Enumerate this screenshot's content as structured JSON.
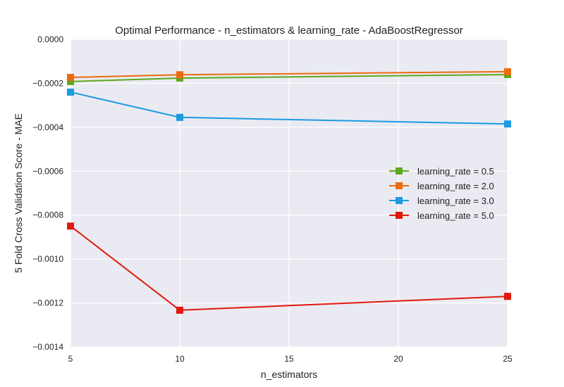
{
  "chart_data": {
    "type": "line",
    "title": "Optimal Performance - n_estimators & learning_rate - AdaBoostRegressor",
    "xlabel": "n_estimators",
    "ylabel": "5 Fold Cross Validation Score - MAE",
    "xlim": [
      5,
      25
    ],
    "ylim": [
      -0.0014,
      0.0
    ],
    "x_ticks": [
      5,
      10,
      15,
      20,
      25
    ],
    "y_ticks": [
      0.0,
      -0.0002,
      -0.0004,
      -0.0006,
      -0.0008,
      -0.001,
      -0.0012,
      -0.0014
    ],
    "x_tick_labels": [
      "5",
      "10",
      "15",
      "20",
      "25"
    ],
    "y_tick_labels": [
      "0.0000",
      "−0.0002",
      "−0.0004",
      "−0.0006",
      "−0.0008",
      "−0.0010",
      "−0.0012",
      "−0.0014"
    ],
    "x": [
      5,
      10,
      25
    ],
    "series": [
      {
        "name": "learning_rate = 0.5",
        "color": "#5ea81f",
        "values": [
          -0.000192,
          -0.000176,
          -0.00016
        ]
      },
      {
        "name": "learning_rate = 2.0",
        "color": "#ec6b0e",
        "values": [
          -0.000173,
          -0.000161,
          -0.000147
        ]
      },
      {
        "name": "learning_rate = 3.0",
        "color": "#1b9be0",
        "values": [
          -0.00024,
          -0.000355,
          -0.000385
        ]
      },
      {
        "name": "learning_rate = 5.0",
        "color": "#e0190b",
        "values": [
          -0.00085,
          -0.001233,
          -0.00117
        ]
      }
    ],
    "grid": true,
    "legend_position": "center-right",
    "background_color": "#eaeaf2"
  }
}
